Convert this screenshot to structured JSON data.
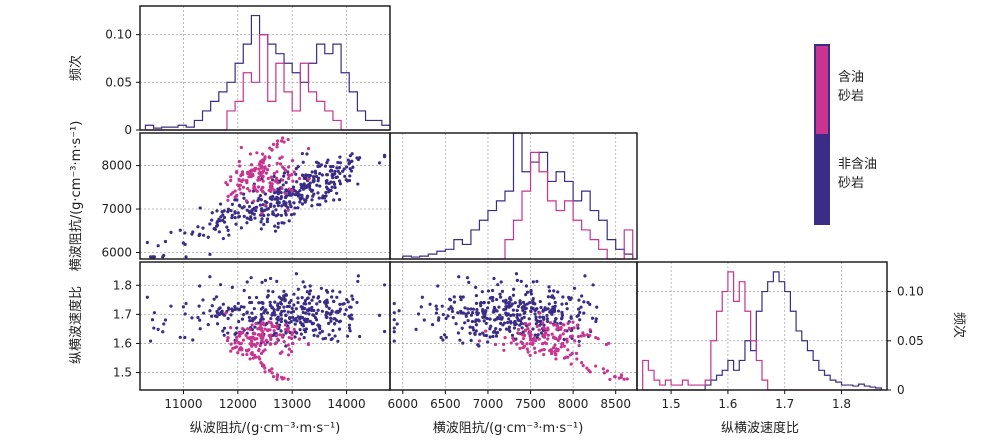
{
  "chart_data": {
    "type": "scatter",
    "layout": "pair-plot",
    "colors": {
      "oil": "#c8348f",
      "non_oil": "#3b2d86"
    },
    "legend": {
      "items": [
        "含油\n砂岩",
        "非含油\n砂岩"
      ],
      "placement": "top-right colorbar"
    },
    "labels": {
      "x1": "纵波阻抗/(g·cm⁻³·m·s⁻¹)",
      "x2": "横波阻抗/(g·cm⁻³·m·s⁻¹)",
      "x3": "纵横波速度比",
      "y0": "频次",
      "y1": "横波阻抗/(g·cm⁻³·m·s⁻¹)",
      "y2": "纵横波速度比",
      "y3": "频次"
    },
    "ranges": {
      "Ip": [
        10200,
        14800
      ],
      "Is": [
        5850,
        8750
      ],
      "Vr": [
        1.44,
        1.88
      ],
      "freq0": [
        0,
        0.13
      ],
      "freq3": [
        0,
        0.13
      ]
    },
    "ticks": {
      "Ip": [
        11000,
        12000,
        13000,
        14000
      ],
      "Ip_labels": [
        "11000",
        "12000",
        "13000",
        "14000"
      ],
      "Is_x": [
        6000,
        6500,
        7000,
        7500,
        8000,
        8500
      ],
      "Is_x_labels": [
        "6000",
        "6500",
        "7000",
        "7500",
        "8000",
        "8500"
      ],
      "Is_y": [
        6000,
        7000,
        8000
      ],
      "Is_y_labels": [
        "6000",
        "7000",
        "8000"
      ],
      "Vr_x": [
        1.5,
        1.6,
        1.7,
        1.8
      ],
      "Vr_x_labels": [
        "1.5",
        "1.6",
        "1.7",
        "1.8"
      ],
      "Vr_y": [
        1.5,
        1.6,
        1.7,
        1.8
      ],
      "Vr_y_labels": [
        "1.5",
        "1.6",
        "1.7",
        "1.8"
      ],
      "freq": [
        0,
        0.05,
        0.1
      ],
      "freq_labels": [
        "0",
        "0.05",
        "0.10"
      ]
    },
    "hist_Ip": {
      "bin_start": 10300,
      "bin_width": 150,
      "oil": [
        0,
        0,
        0,
        0,
        0,
        0,
        0,
        0,
        0,
        0,
        0.02,
        0.03,
        0.06,
        0.05,
        0.1,
        0.03,
        0.07,
        0.04,
        0.02,
        0.07,
        0.04,
        0.03,
        0.02,
        0.01,
        0,
        0,
        0,
        0,
        0,
        0
      ],
      "non_oil": [
        0.005,
        0.002,
        0.003,
        0.003,
        0.005,
        0.003,
        0.01,
        0.02,
        0.03,
        0.04,
        0.05,
        0.07,
        0.09,
        0.12,
        0.1,
        0.09,
        0.08,
        0.07,
        0.06,
        0.05,
        0.07,
        0.09,
        0.08,
        0.09,
        0.06,
        0.04,
        0.02,
        0.01,
        0.01,
        0.005
      ]
    },
    "hist_Is": {
      "bin_start": 6000,
      "bin_width": 100,
      "oil": [
        0,
        0,
        0,
        0,
        0,
        0,
        0,
        0,
        0,
        0,
        0,
        0,
        0.02,
        0.04,
        0.07,
        0.11,
        0.09,
        0.06,
        0.05,
        0.06,
        0.04,
        0.03,
        0.02,
        0.01,
        0,
        0,
        0.03
      ],
      "non_oil": [
        0.003,
        0.002,
        0.003,
        0.005,
        0.008,
        0.01,
        0.02,
        0.015,
        0.03,
        0.04,
        0.05,
        0.06,
        0.07,
        0.13,
        0.09,
        0.1,
        0.11,
        0.08,
        0.09,
        0.08,
        0.06,
        0.07,
        0.05,
        0.04,
        0.02,
        0.01,
        0.005
      ]
    },
    "hist_Vr": {
      "bin_start": 1.45,
      "bin_width": 0.01,
      "oil": [
        0.03,
        0.02,
        0.01,
        0.005,
        0.01,
        0.005,
        0.005,
        0.01,
        0.005,
        0.005,
        0.005,
        0.01,
        0.05,
        0.08,
        0.1,
        0.12,
        0.09,
        0.11,
        0.08,
        0.05,
        0.03,
        0.01,
        0,
        0,
        0,
        0,
        0,
        0,
        0,
        0,
        0,
        0,
        0,
        0,
        0,
        0,
        0,
        0,
        0,
        0,
        0,
        0
      ],
      "non_oil": [
        0,
        0,
        0,
        0,
        0,
        0,
        0,
        0,
        0,
        0,
        0,
        0.005,
        0.01,
        0.015,
        0.02,
        0.03,
        0.02,
        0.03,
        0.05,
        0.04,
        0.08,
        0.1,
        0.11,
        0.12,
        0.11,
        0.1,
        0.08,
        0.06,
        0.05,
        0.04,
        0.03,
        0.02,
        0.015,
        0.01,
        0.008,
        0.005,
        0.005,
        0.004,
        0.006,
        0.004,
        0.003,
        0.002
      ]
    },
    "clusters": {
      "n_oil": 160,
      "n_non_oil": 380,
      "oil_curve_Ip_Is": {
        "Ip": [
          11800,
          12400,
          12900
        ],
        "Is": [
          7200,
          7800,
          8600
        ]
      },
      "oil_mean": {
        "Ip": 12500,
        "Is": 7700,
        "Vr": 1.61
      },
      "non_oil_mean": {
        "Ip": 13000,
        "Is": 7700,
        "Vr": 1.7
      }
    }
  }
}
